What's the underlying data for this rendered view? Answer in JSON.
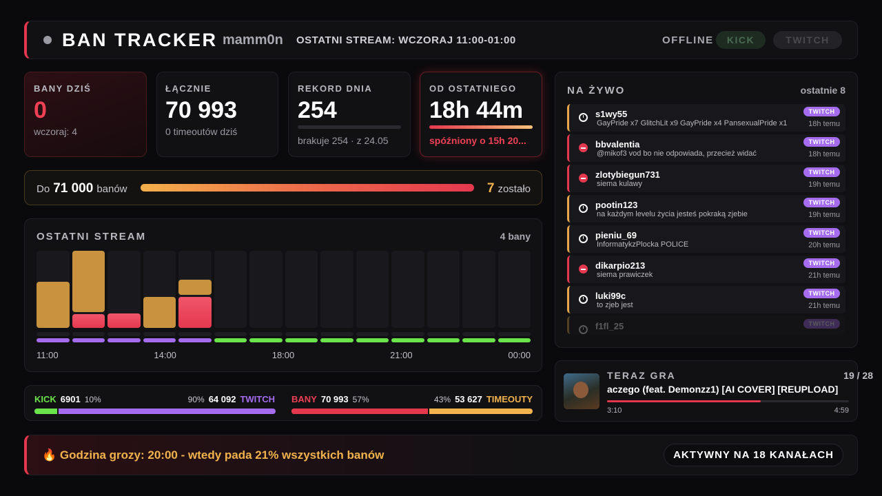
{
  "header": {
    "title": "BAN TRACKER",
    "channel": "mamm0n",
    "last_stream": "OSTATNI STREAM: WCZORAJ 11:00-01:00",
    "status": "OFFLINE",
    "buttons": [
      "KICK",
      "TWITCH"
    ]
  },
  "stats": [
    {
      "label": "BANY DZIŚ",
      "value": "0",
      "sub": "wczoraj: 4"
    },
    {
      "label": "ŁĄCZNIE",
      "value": "70 993",
      "sub": "0 timeoutów dziś"
    },
    {
      "label": "REKORD DNIA",
      "value": "254",
      "sub": "brakuje 254 · z 24.05"
    },
    {
      "label": "OD OSTATNIEGO",
      "value": "18h 44m",
      "sub": "spóźniony o 15h 20..."
    }
  ],
  "goal": {
    "prefix": "Do",
    "target": "71 000",
    "suffix": "banów",
    "remaining": "7",
    "remaining_suffix": "zostało"
  },
  "stream_chart": {
    "title": "OSTATNI STREAM",
    "total": "4 bany",
    "ylim": [
      0,
      100
    ],
    "columns": [
      {
        "timeouts": 60,
        "bans": 0,
        "platform": "twitch"
      },
      {
        "timeouts": 79,
        "bans": 18,
        "platform": "twitch"
      },
      {
        "timeouts": 0,
        "bans": 19,
        "platform": "twitch"
      },
      {
        "timeouts": 40,
        "bans": 0,
        "platform": "twitch"
      },
      {
        "timeouts": 20,
        "bans": 40,
        "platform": "twitch"
      },
      {
        "timeouts": 0,
        "bans": 0,
        "platform": "kick"
      },
      {
        "timeouts": 0,
        "bans": 0,
        "platform": "kick"
      },
      {
        "timeouts": 0,
        "bans": 0,
        "platform": "kick"
      },
      {
        "timeouts": 0,
        "bans": 0,
        "platform": "kick"
      },
      {
        "timeouts": 0,
        "bans": 0,
        "platform": "kick"
      },
      {
        "timeouts": 0,
        "bans": 0,
        "platform": "kick"
      },
      {
        "timeouts": 0,
        "bans": 0,
        "platform": "kick"
      },
      {
        "timeouts": 0,
        "bans": 0,
        "platform": "kick"
      },
      {
        "timeouts": 0,
        "bans": 0,
        "platform": "kick"
      }
    ],
    "x_labels": [
      "11:00",
      "14:00",
      "18:00",
      "21:00",
      "00:00"
    ]
  },
  "split": {
    "platforms": {
      "left_name": "KICK",
      "left_value": "6901",
      "left_pct": "10%",
      "right_pct": "90%",
      "right_value": "64 092",
      "right_name": "TWITCH"
    },
    "types": {
      "left_name": "BANY",
      "left_value": "70 993",
      "left_pct": "57%",
      "right_pct": "43%",
      "right_value": "53 627",
      "right_name": "TIMEOUTY"
    }
  },
  "live": {
    "title": "NA ŻYWO",
    "count": "ostatnie 8",
    "entries": [
      {
        "user": "s1wy55",
        "message": "GayPride x7 GlitchLit x9 GayPride x4 PansexualPride x1",
        "badge": "TWITCH",
        "time": "18h temu",
        "type": "timeout"
      },
      {
        "user": "bbvalentia",
        "message": "@mikof3 vod bo nie odpowiada, przecież widać",
        "badge": "TWITCH",
        "time": "18h temu",
        "type": "ban"
      },
      {
        "user": "zlotybiegun731",
        "message": "siema kulawy",
        "badge": "TWITCH",
        "time": "19h temu",
        "type": "ban"
      },
      {
        "user": "pootin123",
        "message": "na każdym levelu życia jesteś pokraką zjebie",
        "badge": "TWITCH",
        "time": "19h temu",
        "type": "timeout"
      },
      {
        "user": "pieniu_69",
        "message": "InformatykzPlocka POLICE",
        "badge": "TWITCH",
        "time": "20h temu",
        "type": "timeout"
      },
      {
        "user": "dikarpio213",
        "message": "siema prawiczek",
        "badge": "TWITCH",
        "time": "21h temu",
        "type": "ban"
      },
      {
        "user": "luki99c",
        "message": "to zjeb jest",
        "badge": "TWITCH",
        "time": "21h temu",
        "type": "timeout"
      },
      {
        "user": "f1fl_25",
        "badge": "TWITCH",
        "type": "timeout"
      }
    ]
  },
  "now_playing": {
    "title": "TERAZ GRA",
    "position": "19 / 28",
    "song": "aczego (feat. Demonzz1) [AI COVER] [REUPLOAD]",
    "elapsed": "3:10",
    "duration": "4:59"
  },
  "footer": {
    "text": "🔥 Godzina grozy: 20:00 - wtedy pada 21% wszystkich banów",
    "badge": "AKTYWNY NA 18 KANAŁACH"
  }
}
